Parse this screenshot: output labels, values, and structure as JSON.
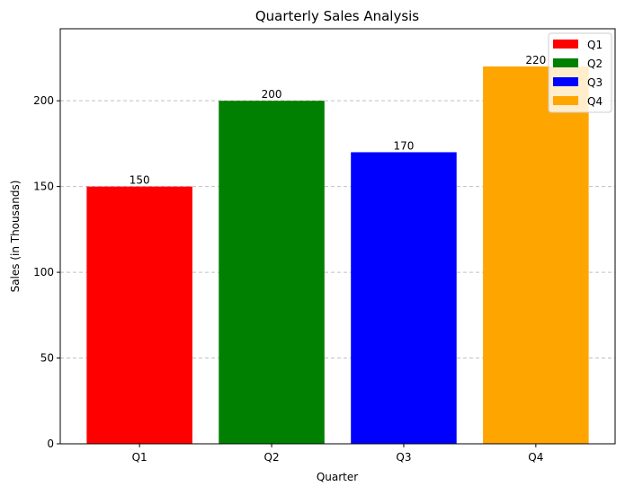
{
  "chart_data": {
    "type": "bar",
    "title": "Quarterly Sales Analysis",
    "xlabel": "Quarter",
    "ylabel": "Sales (in Thousands)",
    "categories": [
      "Q1",
      "Q2",
      "Q3",
      "Q4"
    ],
    "values": [
      150,
      200,
      170,
      220
    ],
    "data_labels": [
      "150",
      "200",
      "170",
      "220"
    ],
    "colors": [
      "#ff0000",
      "#008000",
      "#0000ff",
      "#ffa500"
    ],
    "ylim": [
      0,
      242
    ],
    "yticks": [
      0,
      50,
      100,
      150,
      200
    ],
    "ytick_labels": [
      "0",
      "50",
      "100",
      "150",
      "200"
    ],
    "grid": "y-axis dashed",
    "legend": {
      "placement": "top-right",
      "entries": [
        "Q1",
        "Q2",
        "Q3",
        "Q4"
      ]
    }
  }
}
